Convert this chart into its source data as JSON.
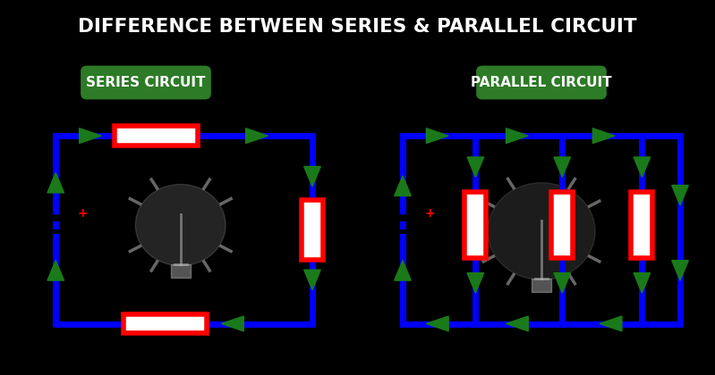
{
  "title": "DIFFERENCE BETWEEN SERIES & PARALLEL CIRCUIT",
  "title_color": "#ffffff",
  "bg_color": "#000000",
  "circuit_bg": "#ffffff",
  "blue": "#0000ff",
  "red": "#ff0000",
  "green": "#1a7a1a",
  "label_bg": "#2d7a27",
  "series_label": "SERIES CIRCUIT",
  "parallel_label": "PARALLEL CIRCUIT",
  "line_width": 5
}
